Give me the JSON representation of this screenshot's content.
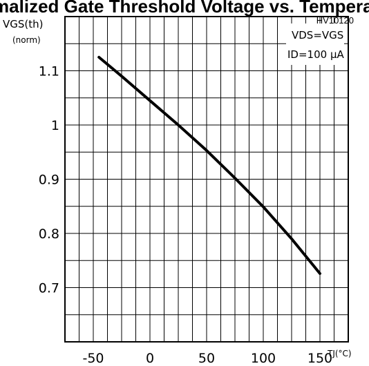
{
  "chart_data": {
    "type": "line",
    "title": "Normalized Gate Threshold Voltage vs. Temperature",
    "figure_code": "HV10120",
    "ylabel": "VGS(th)",
    "ylabel_sub": "(norm)",
    "xlabel": "TJ(°C)",
    "conditions": [
      "VDS=VGS",
      "ID=100 μA"
    ],
    "xlim": [
      -75,
      175
    ],
    "ylim": [
      0.6,
      1.2
    ],
    "x_ticks": [
      -50,
      0,
      50,
      100,
      150
    ],
    "x_tick_labels": [
      "-50",
      "0",
      "50",
      "100",
      "150"
    ],
    "y_ticks": [
      0.7,
      0.8,
      0.9,
      1.0,
      1.1
    ],
    "y_tick_labels": [
      "0.7",
      "0.8",
      "0.9",
      "1",
      "1.1"
    ],
    "grid": true,
    "series": [
      {
        "x": [
          -45,
          -25,
          0,
          25,
          50,
          75,
          100,
          125,
          150
        ],
        "y": [
          1.125,
          1.09,
          1.045,
          1.0,
          0.953,
          0.902,
          0.849,
          0.79,
          0.726
        ]
      }
    ]
  }
}
